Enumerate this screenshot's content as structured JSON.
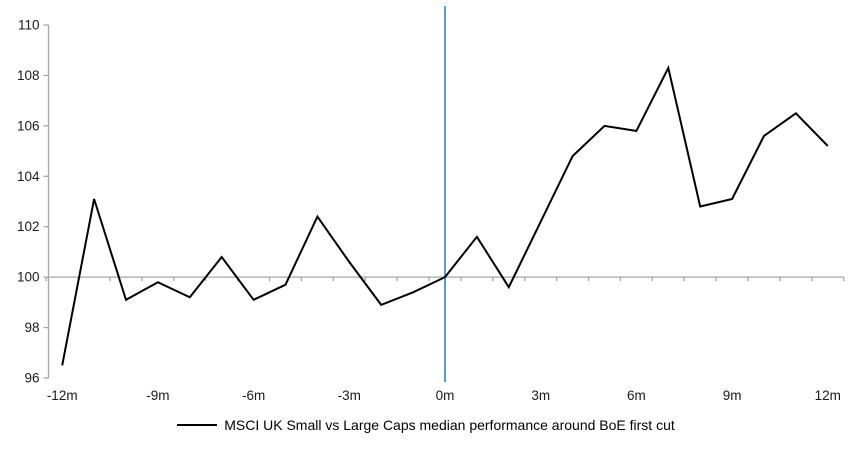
{
  "chart_data": {
    "type": "line",
    "title": "",
    "xlabel": "",
    "ylabel": "",
    "x_unit": "months relative to first cut",
    "x": [
      -12,
      -11,
      -10,
      -9,
      -8,
      -7,
      -6,
      -5,
      -4,
      -3,
      -2,
      -1,
      0,
      1,
      2,
      3,
      4,
      5,
      6,
      7,
      8,
      9,
      10,
      11,
      12
    ],
    "series": [
      {
        "name": "MSCI UK Small vs Large Caps median performance around BoE first cut",
        "color": "#000000",
        "values": [
          96.5,
          103.1,
          99.1,
          99.8,
          99.2,
          100.8,
          99.1,
          99.7,
          102.4,
          100.6,
          98.9,
          99.4,
          100.0,
          101.6,
          99.6,
          102.2,
          104.8,
          106.0,
          105.8,
          108.3,
          102.8,
          103.1,
          105.6,
          106.5,
          105.2
        ]
      }
    ],
    "ylim": [
      96,
      110
    ],
    "y_ticks": [
      110,
      108,
      106,
      104,
      102,
      100,
      98,
      96
    ],
    "x_tick_months": [
      -12,
      -9,
      -6,
      -3,
      0,
      3,
      6,
      9,
      12
    ],
    "x_tick_labels": [
      "-12m",
      "-9m",
      "-6m",
      "-3m",
      "0m",
      "3m",
      "6m",
      "9m",
      "12m"
    ],
    "baseline_value": 100,
    "event_line_month": 0,
    "grid": "baseline-only",
    "legend_position": "bottom",
    "colors": {
      "series_line": "#000000",
      "event_line": "#5b9bd5",
      "axis": "#a6a6a6",
      "tick": "#a6a6a6",
      "label_text": "#1a1a1a"
    }
  },
  "legend": {
    "label": "MSCI UK Small vs Large Caps median performance around BoE first cut"
  }
}
